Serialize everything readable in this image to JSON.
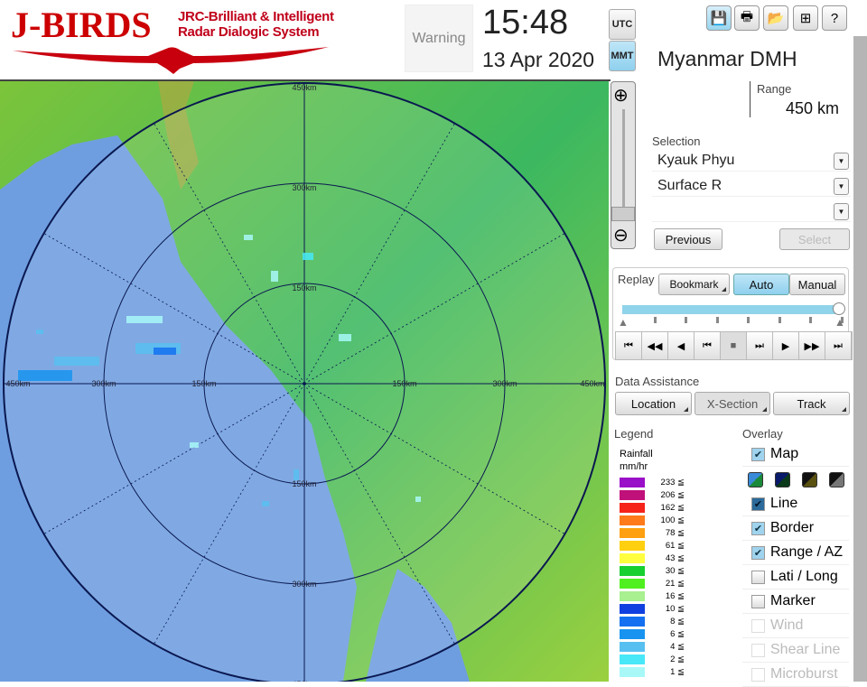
{
  "header": {
    "logo_main": "J-BIRDS",
    "logo_sub_line1": "JRC-Brilliant & Intelligent",
    "logo_sub_line2": "Radar Dialogic System",
    "warning_label": "Warning",
    "time": "15:48",
    "date": "13 Apr 2020",
    "tz_utc": "UTC",
    "tz_mmt": "MMT",
    "tz_selected": "MMT"
  },
  "toolbar": {
    "icons": [
      "save-icon",
      "print-icon",
      "open-folder-icon",
      "add-window-icon",
      "help-icon"
    ]
  },
  "station": {
    "name": "Myanmar DMH",
    "range_label": "Range",
    "range_value": "450 km"
  },
  "selection": {
    "label": "Selection",
    "site": "Kyauk Phyu",
    "product": "Surface R",
    "third": "",
    "previous_label": "Previous",
    "select_label": "Select"
  },
  "replay": {
    "label": "Replay",
    "bookmark_label": "Bookmark",
    "auto_label": "Auto",
    "manual_label": "Manual",
    "mode": "Auto",
    "progress_percent": 100
  },
  "data_assistance": {
    "label": "Data Assistance",
    "location_label": "Location",
    "xsection_label": "X-Section",
    "track_label": "Track"
  },
  "legend": {
    "label": "Legend",
    "title_line1": "Rainfall",
    "title_line2": "mm/hr",
    "items": [
      {
        "value": "233 ≦",
        "color": "#9a10c8"
      },
      {
        "value": "206 ≦",
        "color": "#c0107a"
      },
      {
        "value": "162 ≦",
        "color": "#f5231a"
      },
      {
        "value": "100 ≦",
        "color": "#ff7a1a"
      },
      {
        "value": "78 ≦",
        "color": "#ffa010"
      },
      {
        "value": "61 ≦",
        "color": "#ffd010"
      },
      {
        "value": "43 ≦",
        "color": "#ffff40"
      },
      {
        "value": "30 ≦",
        "color": "#18d030"
      },
      {
        "value": "21 ≦",
        "color": "#50f020"
      },
      {
        "value": "16 ≦",
        "color": "#a8f090"
      },
      {
        "value": "10 ≦",
        "color": "#1040e0"
      },
      {
        "value": "8 ≦",
        "color": "#1470f0"
      },
      {
        "value": "6 ≦",
        "color": "#1894f0"
      },
      {
        "value": "4 ≦",
        "color": "#58c0f0"
      },
      {
        "value": "2 ≦",
        "color": "#48e8f8"
      },
      {
        "value": "1 ≦",
        "color": "#a8f8f8"
      }
    ]
  },
  "overlay": {
    "label": "Overlay",
    "items": [
      {
        "label": "Map",
        "checked": true,
        "enabled": true
      },
      {
        "label": "Line",
        "checked": true,
        "enabled": true
      },
      {
        "label": "Border",
        "checked": true,
        "enabled": true
      },
      {
        "label": "Range / AZ",
        "checked": true,
        "enabled": true
      },
      {
        "label": "Lati / Long",
        "checked": false,
        "enabled": true
      },
      {
        "label": "Marker",
        "checked": false,
        "enabled": true
      },
      {
        "label": "Wind",
        "checked": false,
        "enabled": false
      },
      {
        "label": "Shear Line",
        "checked": false,
        "enabled": false
      },
      {
        "label": "Microburst",
        "checked": false,
        "enabled": false
      }
    ],
    "map_styles": [
      [
        "#3a8ad8",
        "#1a8a3a"
      ],
      [
        "#0a1a6a",
        "#0a3a1a"
      ],
      [
        "#111",
        "#5a5010"
      ],
      [
        "#111",
        "#777"
      ]
    ]
  },
  "map": {
    "range_labels": {
      "top": [
        "450km",
        "300km",
        "150km"
      ],
      "bottom": [
        "150km",
        "300km",
        "450km"
      ],
      "left": [
        "450km",
        "300km",
        "150km"
      ],
      "right": [
        "150km",
        "300km",
        "450km"
      ]
    }
  }
}
